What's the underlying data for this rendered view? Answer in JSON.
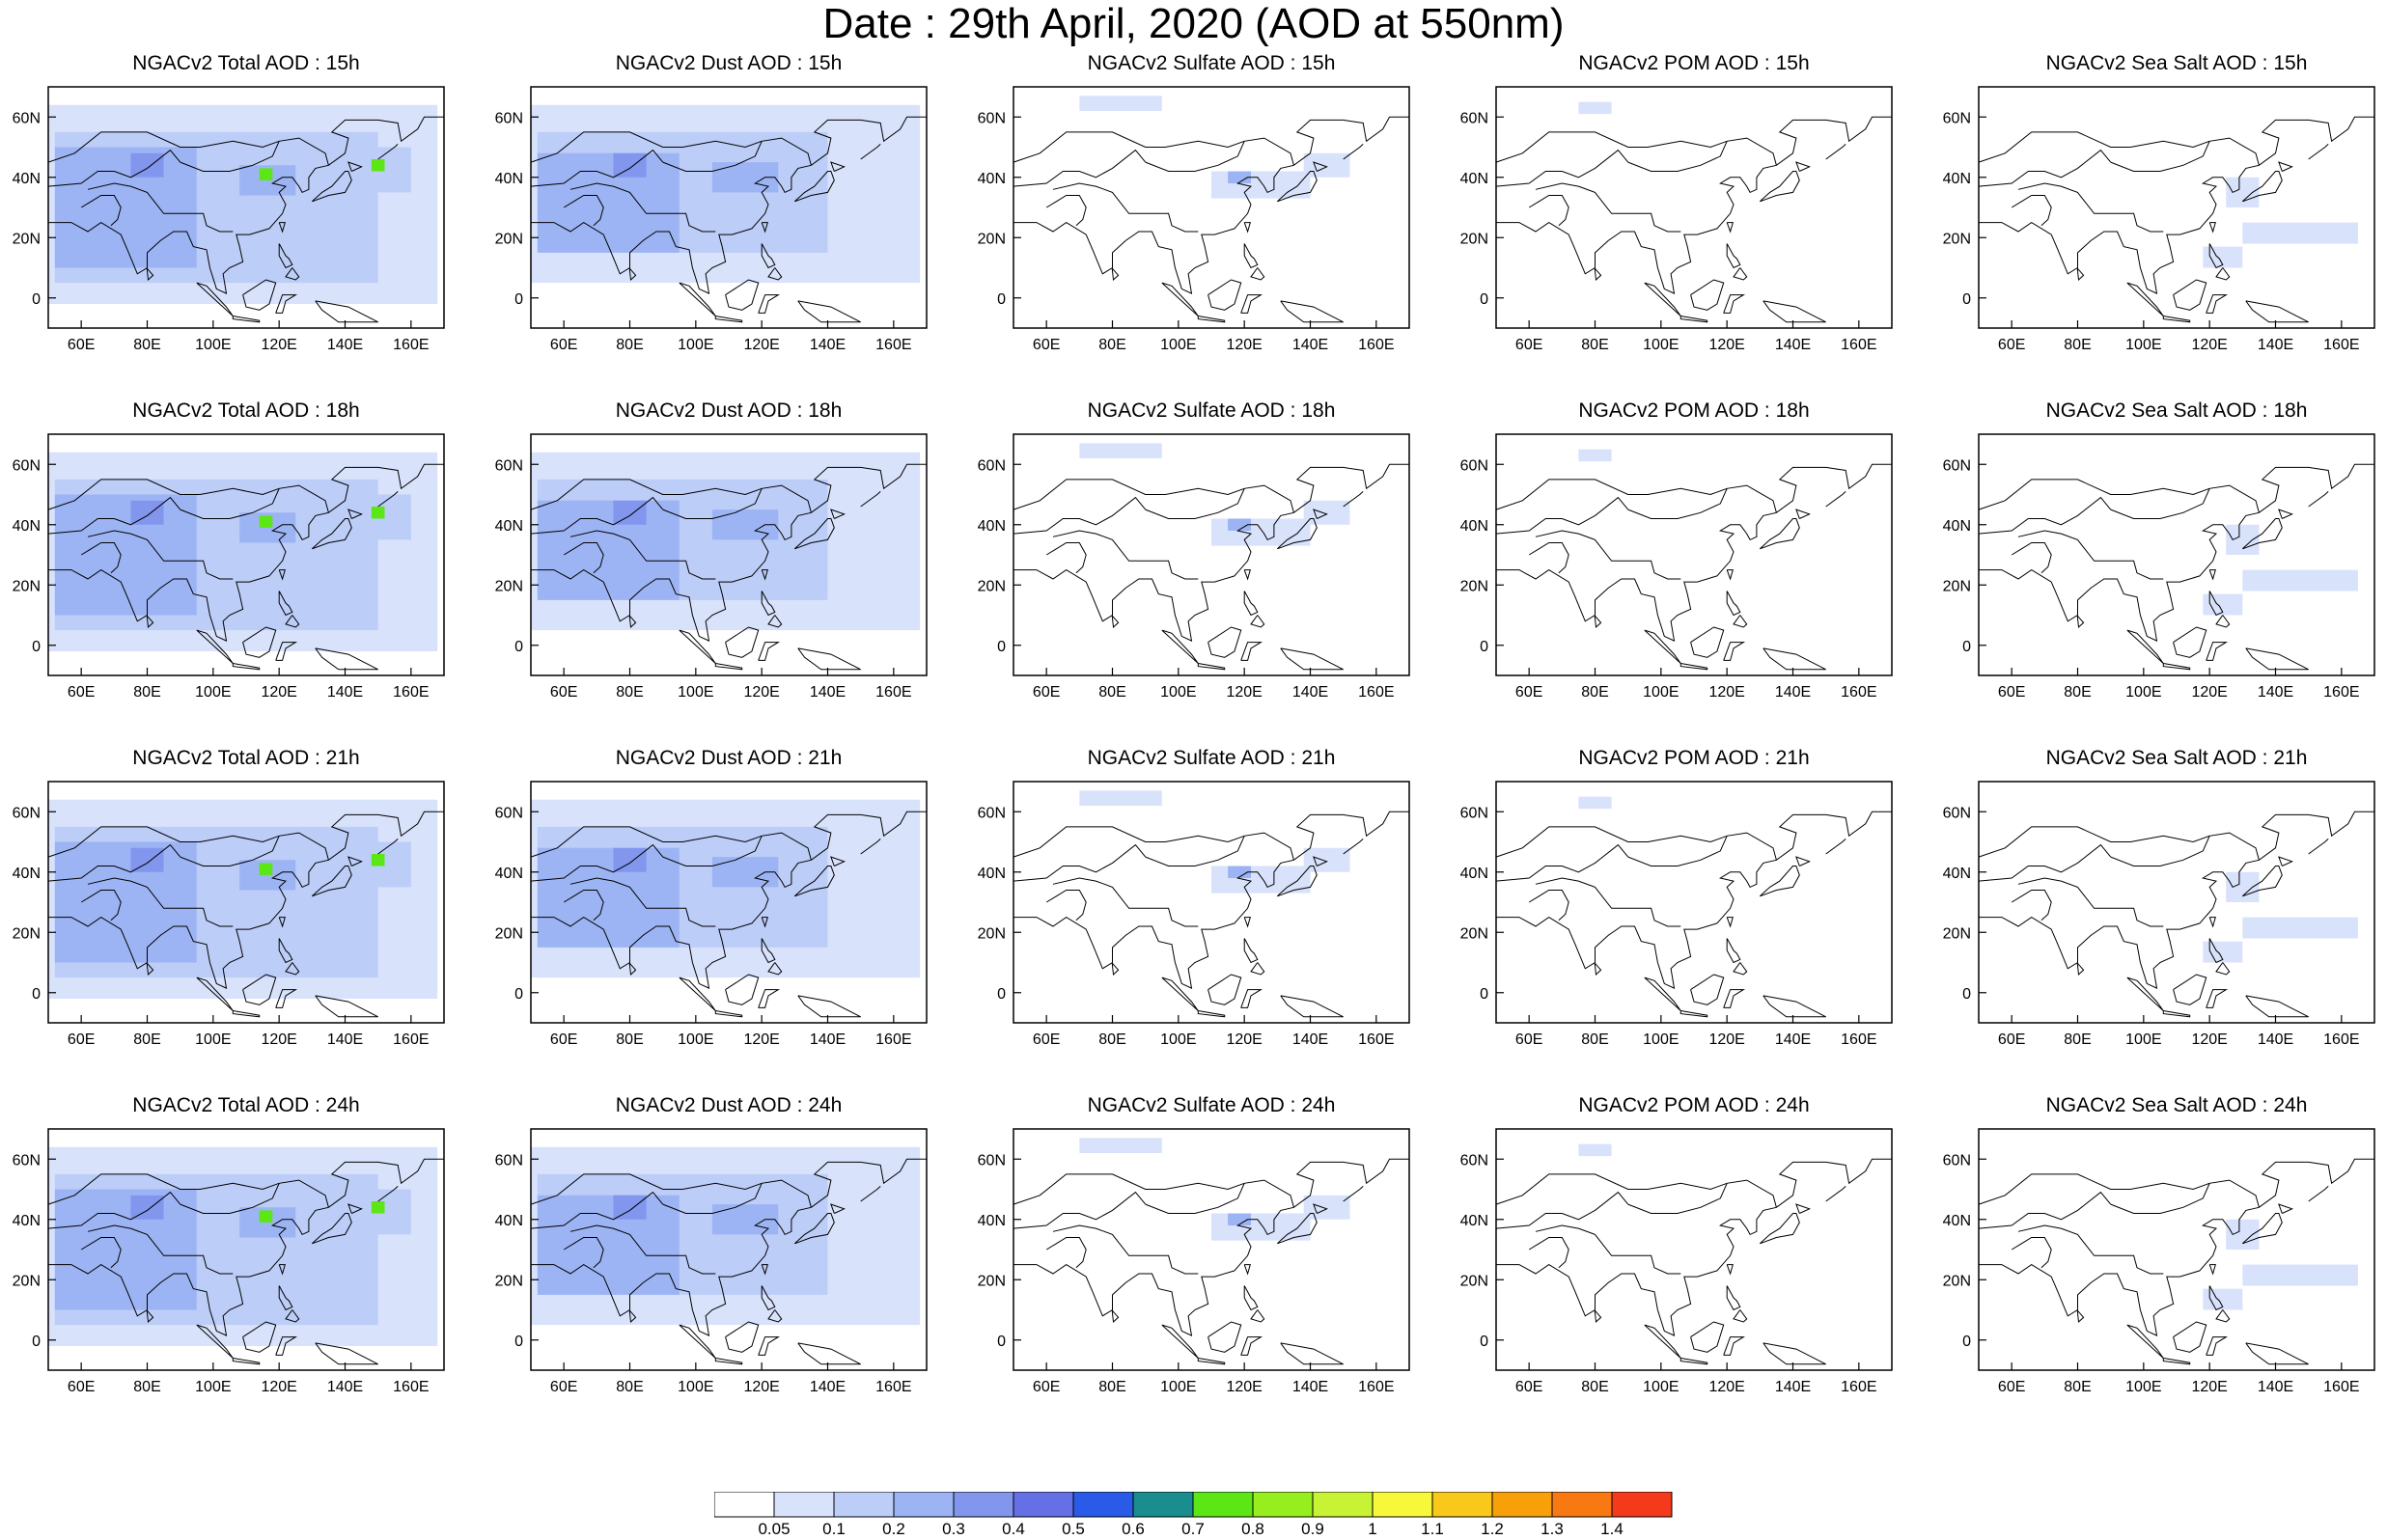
{
  "title": "Date : 29th April, 2020 (AOD at 550nm)",
  "map": {
    "lon_range": [
      50,
      170
    ],
    "lat_range": [
      -10,
      70
    ],
    "lon_ticks": [
      60,
      80,
      100,
      120,
      140,
      160
    ],
    "lon_tick_labels": [
      "60E",
      "80E",
      "100E",
      "120E",
      "140E",
      "160E"
    ],
    "lat_ticks": [
      0,
      20,
      40,
      60
    ],
    "lat_tick_labels": [
      "0",
      "20N",
      "40N",
      "60N"
    ]
  },
  "panels": [
    {
      "title": "NGACv2 Total AOD : 15h",
      "species": "total",
      "hour": "15h"
    },
    {
      "title": "NGACv2 Dust AOD : 15h",
      "species": "dust",
      "hour": "15h"
    },
    {
      "title": "NGACv2 Sulfate AOD : 15h",
      "species": "sulfate",
      "hour": "15h"
    },
    {
      "title": "NGACv2 POM AOD : 15h",
      "species": "pom",
      "hour": "15h"
    },
    {
      "title": "NGACv2 Sea Salt AOD : 15h",
      "species": "seasalt",
      "hour": "15h"
    },
    {
      "title": "NGACv2 Total AOD : 18h",
      "species": "total",
      "hour": "18h"
    },
    {
      "title": "NGACv2 Dust AOD : 18h",
      "species": "dust",
      "hour": "18h"
    },
    {
      "title": "NGACv2 Sulfate AOD : 18h",
      "species": "sulfate",
      "hour": "18h"
    },
    {
      "title": "NGACv2 POM AOD : 18h",
      "species": "pom",
      "hour": "18h"
    },
    {
      "title": "NGACv2 Sea Salt AOD : 18h",
      "species": "seasalt",
      "hour": "18h"
    },
    {
      "title": "NGACv2 Total AOD : 21h",
      "species": "total",
      "hour": "21h"
    },
    {
      "title": "NGACv2 Dust AOD : 21h",
      "species": "dust",
      "hour": "21h"
    },
    {
      "title": "NGACv2 Sulfate AOD : 21h",
      "species": "sulfate",
      "hour": "21h"
    },
    {
      "title": "NGACv2 POM AOD : 21h",
      "species": "pom",
      "hour": "21h"
    },
    {
      "title": "NGACv2 Sea Salt AOD : 21h",
      "species": "seasalt",
      "hour": "21h"
    },
    {
      "title": "NGACv2 Total AOD : 24h",
      "species": "total",
      "hour": "24h"
    },
    {
      "title": "NGACv2 Dust AOD : 24h",
      "species": "dust",
      "hour": "24h"
    },
    {
      "title": "NGACv2 Sulfate AOD : 24h",
      "species": "sulfate",
      "hour": "24h"
    },
    {
      "title": "NGACv2 POM AOD : 24h",
      "species": "pom",
      "hour": "24h"
    },
    {
      "title": "NGACv2 Sea Salt  AOD : 24h",
      "species": "seasalt",
      "hour": "24h"
    }
  ],
  "colorbar": {
    "labels": [
      "0.05",
      "0.1",
      "0.2",
      "0.3",
      "0.4",
      "0.5",
      "0.6",
      "0.7",
      "0.8",
      "0.9",
      "1",
      "1.1",
      "1.2",
      "1.3",
      "1.4"
    ],
    "colors": [
      "#ffffff",
      "#d8e2fb",
      "#bccdf8",
      "#9db4f4",
      "#8296ee",
      "#6670e6",
      "#2a5be8",
      "#1a8e8e",
      "#5ce616",
      "#96ee1e",
      "#c8f234",
      "#f8f83a",
      "#f8c81a",
      "#f8a00a",
      "#f87812",
      "#f43a1a"
    ]
  },
  "regions": {
    "total": [
      {
        "lon": [
          50,
          168
        ],
        "lat": [
          -2,
          64
        ],
        "level": 1
      },
      {
        "lon": [
          52,
          150
        ],
        "lat": [
          5,
          55
        ],
        "level": 2
      },
      {
        "lon": [
          52,
          95
        ],
        "lat": [
          10,
          50
        ],
        "level": 3
      },
      {
        "lon": [
          100,
          140
        ],
        "lat": [
          25,
          48
        ],
        "level": 2
      },
      {
        "lon": [
          108,
          125
        ],
        "lat": [
          34,
          44
        ],
        "level": 3
      },
      {
        "lon": [
          75,
          85
        ],
        "lat": [
          40,
          48
        ],
        "level": 4
      },
      {
        "lon": [
          140,
          160
        ],
        "lat": [
          35,
          50
        ],
        "level": 2
      },
      {
        "lon": [
          114,
          118
        ],
        "lat": [
          39,
          43
        ],
        "level": 8
      },
      {
        "lon": [
          148,
          152
        ],
        "lat": [
          42,
          46
        ],
        "level": 8
      }
    ],
    "dust": [
      {
        "lon": [
          50,
          168
        ],
        "lat": [
          5,
          64
        ],
        "level": 1
      },
      {
        "lon": [
          52,
          140
        ],
        "lat": [
          15,
          55
        ],
        "level": 2
      },
      {
        "lon": [
          52,
          95
        ],
        "lat": [
          15,
          48
        ],
        "level": 3
      },
      {
        "lon": [
          75,
          85
        ],
        "lat": [
          40,
          48
        ],
        "level": 4
      },
      {
        "lon": [
          105,
          125
        ],
        "lat": [
          35,
          45
        ],
        "level": 3
      }
    ],
    "sulfate": [
      {
        "lon": [
          70,
          95
        ],
        "lat": [
          62,
          67
        ],
        "level": 1
      },
      {
        "lon": [
          110,
          140
        ],
        "lat": [
          33,
          42
        ],
        "level": 1
      },
      {
        "lon": [
          115,
          122
        ],
        "lat": [
          38,
          42
        ],
        "level": 3
      },
      {
        "lon": [
          138,
          152
        ],
        "lat": [
          40,
          48
        ],
        "level": 1
      }
    ],
    "pom": [
      {
        "lon": [
          75,
          85
        ],
        "lat": [
          61,
          65
        ],
        "level": 1
      }
    ],
    "seasalt": [
      {
        "lon": [
          130,
          165
        ],
        "lat": [
          18,
          25
        ],
        "level": 1
      },
      {
        "lon": [
          118,
          130
        ],
        "lat": [
          10,
          17
        ],
        "level": 1
      },
      {
        "lon": [
          125,
          135
        ],
        "lat": [
          30,
          40
        ],
        "level": 1
      }
    ]
  }
}
